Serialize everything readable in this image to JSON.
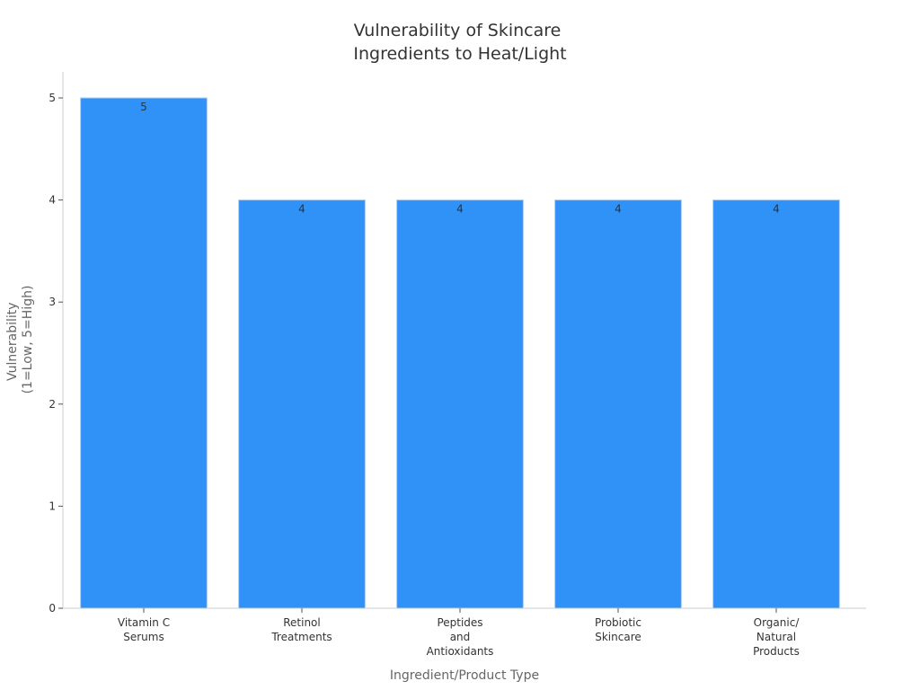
{
  "chart_data": {
    "type": "bar",
    "title_lines": [
      "Vulnerability of Skincare",
      "Ingredients to Heat/Light"
    ],
    "categories": [
      [
        "Vitamin C",
        "Serums"
      ],
      [
        "Retinol",
        "Treatments"
      ],
      [
        "Peptides",
        "and",
        "Antioxidants"
      ],
      [
        "Probiotic",
        "Skincare"
      ],
      [
        "Organic/",
        "Natural",
        "Products"
      ]
    ],
    "values": [
      5,
      4,
      4,
      4,
      4
    ],
    "data_labels": [
      "5",
      "4",
      "4",
      "4",
      "4"
    ],
    "xlabel": "Ingredient/Product Type",
    "ylabel_lines": [
      "Vulnerability",
      "(1=Low, 5=High)"
    ],
    "ylim": [
      0,
      5.25
    ],
    "yticks": [
      0,
      1,
      2,
      3,
      4,
      5
    ],
    "grid": false,
    "bar_color": "#3091f6",
    "bar_edge_color": "#a9cff5"
  }
}
